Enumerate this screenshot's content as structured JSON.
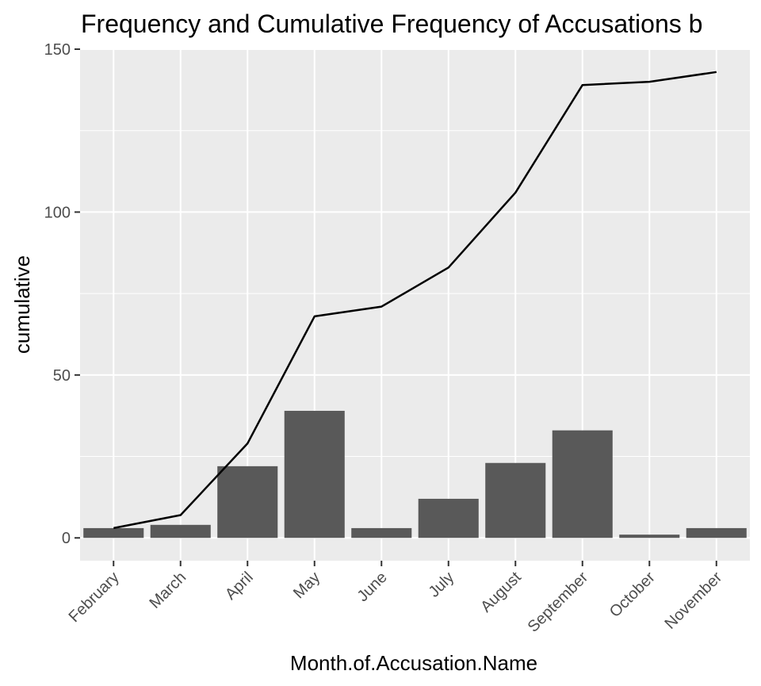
{
  "chart_data": {
    "type": "bar",
    "title": "Frequency and Cumulative Frequency of Accusations b",
    "xlabel": "Month.of.Accusation.Name",
    "ylabel": "cumulative",
    "categories": [
      "February",
      "March",
      "April",
      "May",
      "June",
      "July",
      "August",
      "September",
      "October",
      "November"
    ],
    "series": [
      {
        "name": "frequency",
        "kind": "bar",
        "values": [
          3,
          4,
          22,
          39,
          3,
          12,
          23,
          33,
          1,
          3
        ]
      },
      {
        "name": "cumulative",
        "kind": "line",
        "values": [
          3,
          7,
          29,
          68,
          71,
          83,
          106,
          139,
          140,
          143
        ]
      }
    ],
    "ylim": [
      -7,
      150
    ],
    "yticks": [
      0,
      50,
      100,
      150
    ],
    "yticks_minor": [
      25,
      75,
      125
    ],
    "grid": true,
    "colors": {
      "panel": "#ebebeb",
      "grid": "#ffffff",
      "bar": "#595959",
      "line": "#000000",
      "tick": "#333333"
    }
  }
}
